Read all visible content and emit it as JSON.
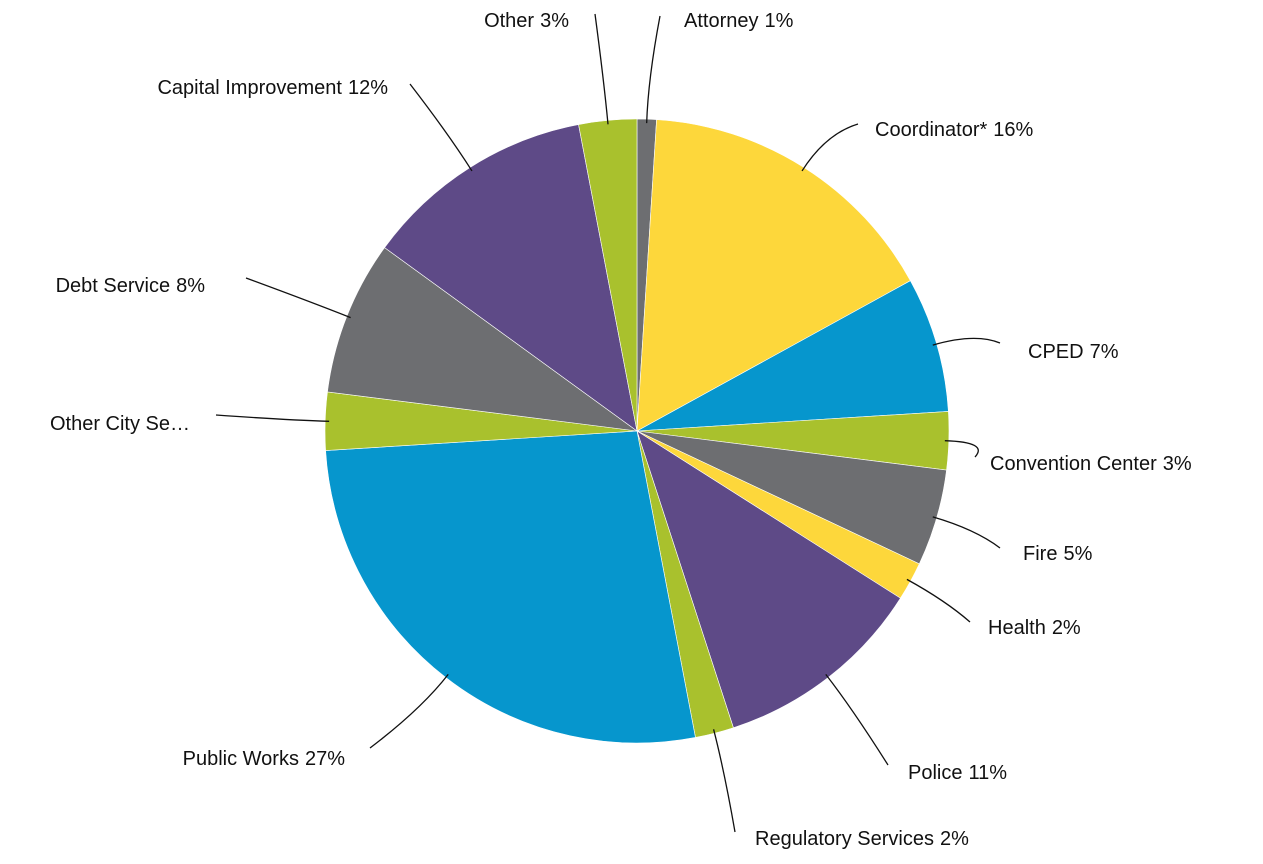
{
  "chart_data": {
    "type": "pie",
    "categories": [
      "Attorney",
      "Coordinator*",
      "CPED",
      "Convention Center",
      "Fire",
      "Health",
      "Police",
      "Regulatory Services",
      "Public Works",
      "Other City Se…",
      "Debt Service",
      "Capital Improvement",
      "Other"
    ],
    "values": [
      1,
      16,
      7,
      3,
      5,
      2,
      11,
      2,
      27,
      3,
      8,
      12,
      3
    ],
    "value_labels": [
      "1%",
      "16%",
      "7%",
      "3%",
      "5%",
      "2%",
      "11%",
      "2%",
      "27%",
      null,
      "8%",
      "12%",
      "3%"
    ],
    "colors": [
      "#6d6e71",
      "#fdd73b",
      "#0696cd",
      "#a9c12d",
      "#6d6e71",
      "#fdd73b",
      "#5e4a87",
      "#a9c12d",
      "#0696cd",
      "#a9c12d",
      "#6d6e71",
      "#5e4a87",
      "#a9c12d"
    ]
  }
}
